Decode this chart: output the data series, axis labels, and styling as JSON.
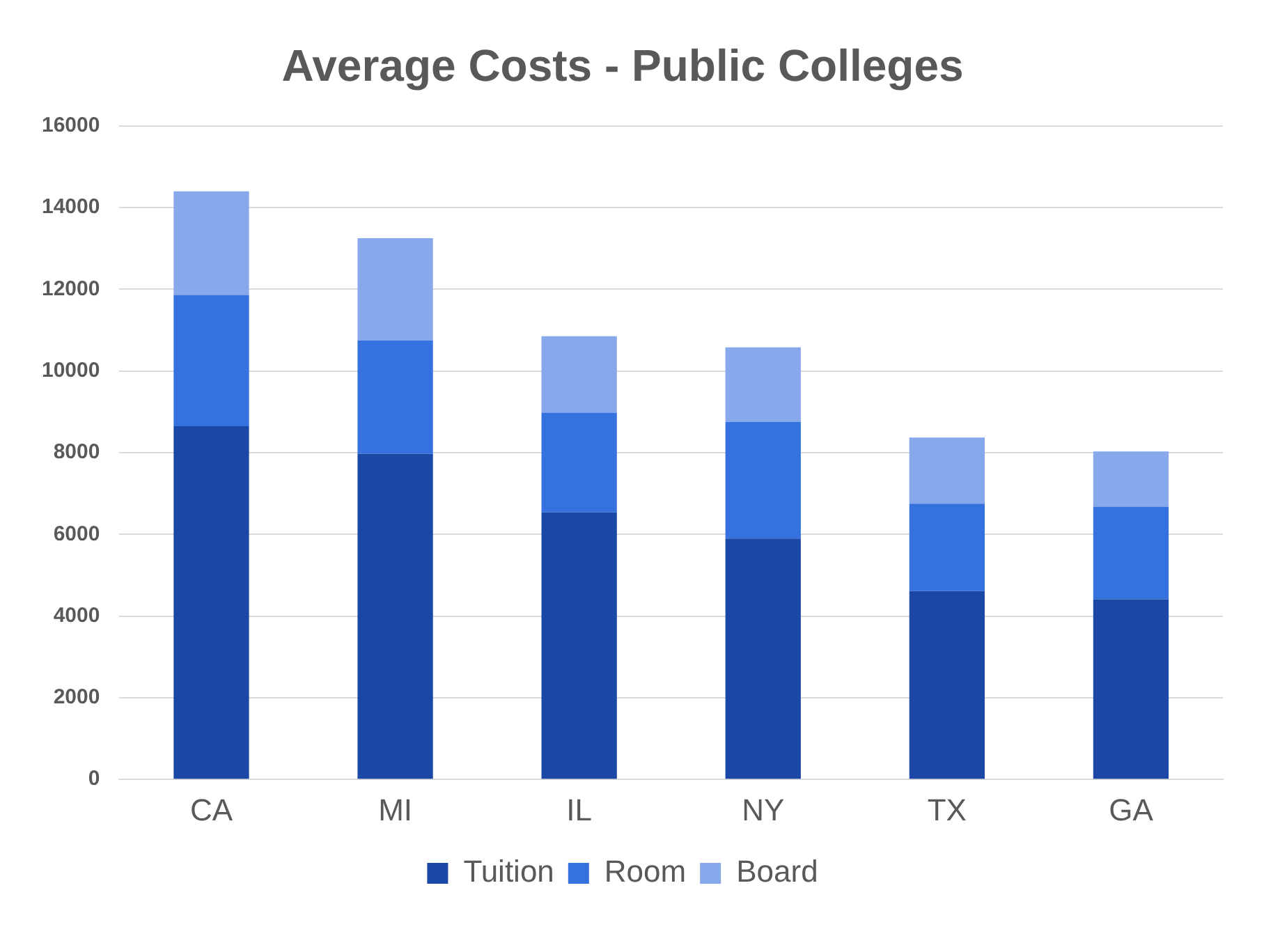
{
  "chart_data": {
    "type": "bar",
    "title": "Average Costs - Public Colleges",
    "stacked": true,
    "categories": [
      "CA",
      "MI",
      "IL",
      "NY",
      "TX",
      "GA"
    ],
    "series": [
      {
        "name": "Tuition",
        "color": "#1b47a6",
        "values": [
          8650,
          7970,
          6540,
          5900,
          4610,
          4410
        ]
      },
      {
        "name": "Room",
        "color": "#3572e0",
        "values": [
          3210,
          2780,
          2440,
          2850,
          2140,
          2270
        ]
      },
      {
        "name": "Board",
        "color": "#88a8ec",
        "values": [
          2540,
          2500,
          1870,
          1830,
          1620,
          1350
        ]
      }
    ],
    "ylim": [
      0,
      16000
    ],
    "yticks": [
      0,
      2000,
      4000,
      6000,
      8000,
      10000,
      12000,
      14000,
      16000
    ],
    "grid": "y",
    "legend": "bottom"
  }
}
